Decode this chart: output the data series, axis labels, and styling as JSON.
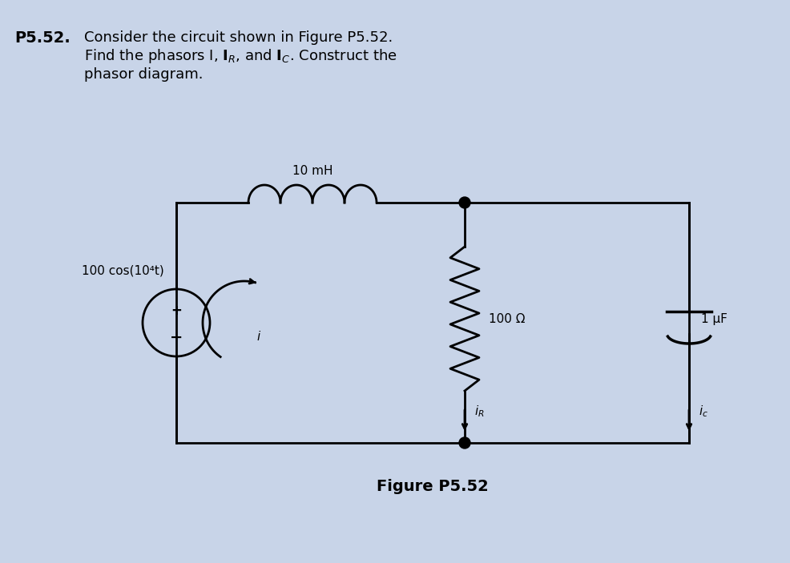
{
  "background_color": "#c8d4e8",
  "title_text": "Figure P5.52",
  "problem_label": "P5.52.",
  "source_label": "100 cos(10⁴t)",
  "inductor_label": "10 mH",
  "resistor_label": "100 Ω",
  "capacitor_label": "1 μF",
  "current_i": "i",
  "current_iR": "i_R",
  "current_iC": "i_c",
  "circuit_color": "#000000",
  "label_fontsize": 11
}
